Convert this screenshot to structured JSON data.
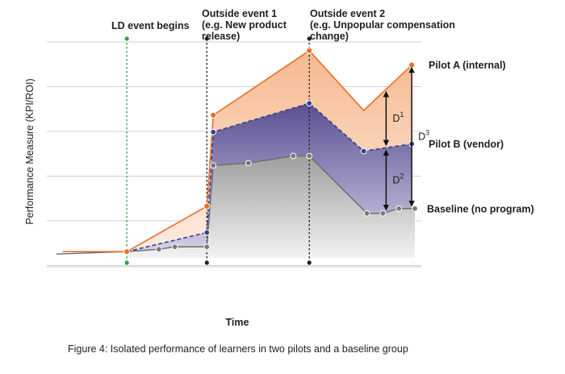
{
  "chart_data": {
    "type": "area",
    "xlabel": "Time",
    "ylabel": "Performance Measure (KPI/ROI)",
    "caption": "Figure 4: Isolated performance of learners in two pilots and a baseline group",
    "grid": true,
    "colors": {
      "pilot_a": "#e8702a",
      "pilot_a_fill": "#f6b98f",
      "pilot_b": "#33418f",
      "pilot_b_fill": "#5a4e92",
      "baseline": "#6b6b6b",
      "baseline_fill": "#9f9f9f",
      "event_ld": "#2ea04a",
      "event_other": "#222222"
    },
    "events": [
      {
        "x": 2.0,
        "lines": [
          "LD event begins"
        ],
        "color": "green"
      },
      {
        "x": 4.5,
        "lines": [
          "Outside event 1",
          "(e.g. New product",
          "release)"
        ],
        "color": "black"
      },
      {
        "x": 7.7,
        "lines": [
          "Outside event 2",
          "(e.g. Unpopular compensation",
          "change)"
        ],
        "color": "black"
      }
    ],
    "series": [
      {
        "name": "Pilot A (internal)",
        "x": [
          0,
          2.0,
          4.5,
          4.7,
          7.7,
          9.4,
          10.9
        ],
        "y": [
          0.1,
          0.1,
          2.0,
          5.8,
          8.5,
          6.0,
          7.9
        ]
      },
      {
        "name": "Pilot B (vendor)",
        "x": [
          2.0,
          4.5,
          4.7,
          7.7,
          9.4,
          10.9
        ],
        "y": [
          0.1,
          0.9,
          5.1,
          6.3,
          4.3,
          4.6
        ]
      },
      {
        "name": "Baseline (no program)",
        "x": [
          -0.2,
          2.0,
          3.0,
          3.5,
          4.5,
          4.7,
          5.8,
          7.2,
          7.7,
          9.5,
          10.0,
          10.5,
          11.0
        ],
        "y": [
          0.0,
          0.1,
          0.2,
          0.3,
          0.3,
          3.7,
          3.8,
          4.1,
          4.1,
          1.7,
          1.7,
          1.9,
          1.9
        ]
      }
    ],
    "differences": [
      {
        "label": "D",
        "sup": "1",
        "between": [
          "Pilot A (internal)",
          "Pilot B (vendor)"
        ],
        "x": 10.1
      },
      {
        "label": "D",
        "sup": "2",
        "between": [
          "Pilot B (vendor)",
          "Baseline (no program)"
        ],
        "x": 10.1
      },
      {
        "label": "D",
        "sup": "3",
        "between": [
          "Pilot A (internal)",
          "Baseline (no program)"
        ],
        "x": 10.9
      }
    ],
    "xlim": [
      -0.5,
      11.2
    ],
    "ylim": [
      -0.5,
      9.0
    ]
  }
}
